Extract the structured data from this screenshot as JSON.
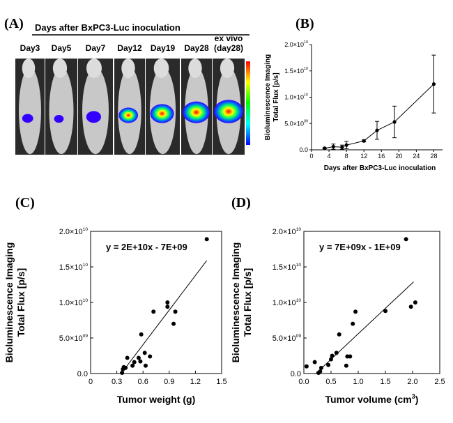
{
  "panels": {
    "a": {
      "label": "(A)",
      "header": "Days after BxPC3-Luc inoculation",
      "columns": [
        "Day3",
        "Day5",
        "Day7",
        "Day12",
        "Day19",
        "Day28",
        "ex vivo\n(day28)"
      ],
      "signal_levels": [
        0.18,
        0.12,
        0.35,
        0.55,
        0.75,
        0.9,
        1.0
      ],
      "colors": {
        "background": "#ffffff",
        "signal_low": "#3300ff",
        "signal_high": "#ff0000",
        "mouse": "#c8c8c8"
      }
    }
  },
  "chart_data": [
    {
      "id": "B",
      "label": "(B)",
      "type": "line",
      "title": "",
      "xlabel": "Days after BxPC3-Luc inoculation",
      "ylabel_lines": [
        "Bioluminescence Imaging",
        "Total Flux [p/s]"
      ],
      "xlim": [
        0,
        30
      ],
      "ylim": [
        0,
        20000000000.0
      ],
      "xticks": [
        0,
        4,
        8,
        12,
        16,
        20,
        24,
        28
      ],
      "yticks": [
        {
          "v": 0,
          "mant": "0.0",
          "exp": ""
        },
        {
          "v": 5000000000.0,
          "mant": "5.0×10",
          "exp": "09"
        },
        {
          "v": 10000000000.0,
          "mant": "1.0×10",
          "exp": "10"
        },
        {
          "v": 15000000000.0,
          "mant": "1.5×10",
          "exp": "10"
        },
        {
          "v": 20000000000.0,
          "mant": "2.0×10",
          "exp": "10"
        }
      ],
      "series": [
        {
          "name": "Total flux",
          "x": [
            3,
            5,
            7,
            8,
            12,
            15,
            19,
            28
          ],
          "y": [
            300000000.0,
            600000000.0,
            500000000.0,
            900000000.0,
            1700000000.0,
            3700000000.0,
            5300000000.0,
            12500000000.0
          ],
          "err": [
            100000000.0,
            500000000.0,
            400000000.0,
            700000000.0,
            200000000.0,
            1700000000.0,
            3000000000.0,
            5500000000.0
          ]
        }
      ]
    },
    {
      "id": "C",
      "label": "(C)",
      "type": "scatter",
      "xlabel": "Tumor weight (g)",
      "xlabel_sup": "",
      "xlabel_tail": "",
      "ylabel_lines": [
        "Bioluminescence Imaging",
        "Total Flux [p/s]"
      ],
      "equation": "y = 2E+10x - 7E+09",
      "xlim": [
        0,
        1.5
      ],
      "ylim": [
        0,
        20000000000.0
      ],
      "xticks": [
        {
          "v": 0,
          "t": "0"
        },
        {
          "v": 0.3,
          "t": "0.3"
        },
        {
          "v": 0.6,
          "t": "0.6"
        },
        {
          "v": 0.9,
          "t": "0.9"
        },
        {
          "v": 1.2,
          "t": "1.2"
        },
        {
          "v": 1.5,
          "t": "1.5"
        }
      ],
      "yticks": [
        {
          "v": 0,
          "mant": "0.0",
          "exp": ""
        },
        {
          "v": 5000000000.0,
          "mant": "5.0×10",
          "exp": "09"
        },
        {
          "v": 10000000000.0,
          "mant": "1.0×10",
          "exp": "10"
        },
        {
          "v": 15000000000.0,
          "mant": "1.5×10",
          "exp": "10"
        },
        {
          "v": 20000000000.0,
          "mant": "2.0×10",
          "exp": "10"
        }
      ],
      "points": [
        [
          0.36,
          100000000.0
        ],
        [
          0.37,
          600000000.0
        ],
        [
          0.38,
          900000000.0
        ],
        [
          0.4,
          800000000.0
        ],
        [
          0.42,
          2200000000.0
        ],
        [
          0.48,
          1100000000.0
        ],
        [
          0.5,
          1600000000.0
        ],
        [
          0.55,
          2200000000.0
        ],
        [
          0.57,
          1700000000.0
        ],
        [
          0.58,
          5500000000.0
        ],
        [
          0.62,
          2900000000.0
        ],
        [
          0.63,
          1100000000.0
        ],
        [
          0.68,
          2400000000.0
        ],
        [
          0.72,
          8700000000.0
        ],
        [
          0.88,
          9400000000.0
        ],
        [
          0.88,
          10000000000.0
        ],
        [
          0.95,
          7000000000.0
        ],
        [
          0.97,
          8700000000.0
        ],
        [
          1.33,
          18900000000.0
        ]
      ],
      "trend": {
        "x": [
          0.35,
          1.33
        ],
        "y": [
          0.0,
          15900000000.0
        ]
      }
    },
    {
      "id": "D",
      "label": "(D)",
      "type": "scatter",
      "xlabel": "Tumor volume (cm",
      "xlabel_sup": "3",
      "xlabel_tail": ")",
      "ylabel_lines": [
        "Bioluminescence Imaging",
        "Total Flux [p/s]"
      ],
      "equation": "y = 7E+09x - 1E+09",
      "xlim": [
        0,
        2.5
      ],
      "ylim": [
        0,
        20000000000.0
      ],
      "xticks": [
        {
          "v": 0,
          "t": "0.0"
        },
        {
          "v": 0.5,
          "t": "0.5"
        },
        {
          "v": 1.0,
          "t": "1.0"
        },
        {
          "v": 1.5,
          "t": "1.5"
        },
        {
          "v": 2.0,
          "t": "2.0"
        },
        {
          "v": 2.5,
          "t": "2.5"
        }
      ],
      "yticks": [
        {
          "v": 0,
          "mant": "0.0",
          "exp": ""
        },
        {
          "v": 5000000000.0,
          "mant": "5.0×10",
          "exp": "09"
        },
        {
          "v": 10000000000.0,
          "mant": "1.0×10",
          "exp": "10"
        },
        {
          "v": 15000000000.0,
          "mant": "1.5×10",
          "exp": "10"
        },
        {
          "v": 20000000000.0,
          "mant": "2.0×10",
          "exp": "10"
        }
      ],
      "points": [
        [
          0.05,
          1000000000.0
        ],
        [
          0.2,
          1600000000.0
        ],
        [
          0.27,
          100000000.0
        ],
        [
          0.3,
          300000000.0
        ],
        [
          0.32,
          800000000.0
        ],
        [
          0.45,
          1200000000.0
        ],
        [
          0.5,
          2000000000.0
        ],
        [
          0.52,
          2500000000.0
        ],
        [
          0.6,
          2900000000.0
        ],
        [
          0.65,
          5500000000.0
        ],
        [
          0.78,
          1100000000.0
        ],
        [
          0.8,
          2400000000.0
        ],
        [
          0.85,
          2400000000.0
        ],
        [
          0.9,
          7000000000.0
        ],
        [
          0.95,
          8700000000.0
        ],
        [
          1.5,
          8800000000.0
        ],
        [
          1.88,
          18900000000.0
        ],
        [
          1.97,
          9400000000.0
        ],
        [
          2.05,
          10000000000.0
        ]
      ],
      "trend": {
        "x": [
          0.22,
          2.02
        ],
        "y": [
          0.0,
          12900000000.0
        ]
      }
    }
  ]
}
